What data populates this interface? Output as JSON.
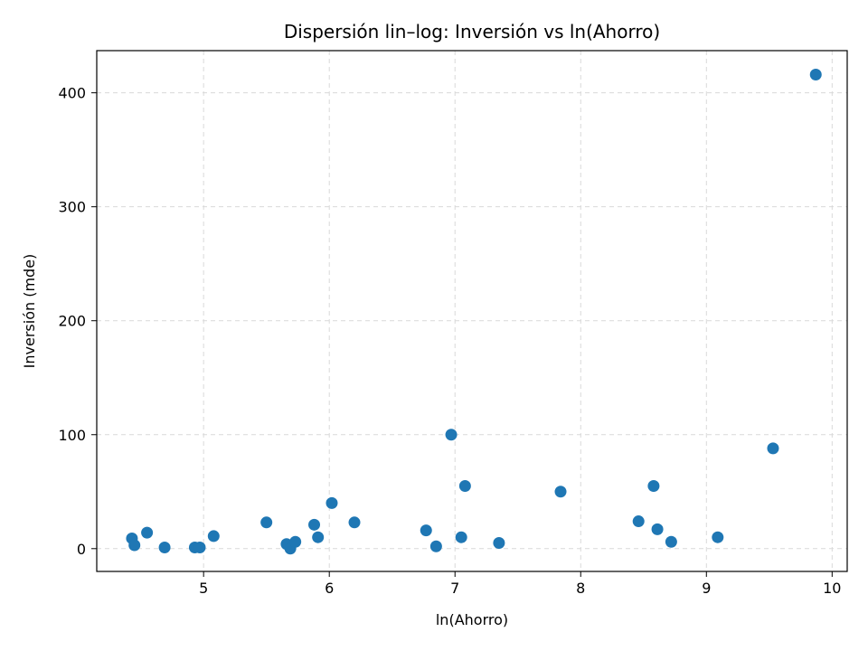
{
  "chart_data": {
    "type": "scatter",
    "title": "Dispersión lin–log: Inversión vs ln(Ahorro)",
    "xlabel": "ln(Ahorro)",
    "ylabel": "Inversión (mde)",
    "xlim": [
      4.15,
      10.12
    ],
    "ylim": [
      -20,
      437
    ],
    "xticks": [
      5,
      6,
      7,
      8,
      9,
      10
    ],
    "yticks": [
      0,
      100,
      200,
      300,
      400
    ],
    "grid": true,
    "marker_color": "#1f77b4",
    "points": [
      {
        "x": 4.43,
        "y": 9
      },
      {
        "x": 4.45,
        "y": 3
      },
      {
        "x": 4.55,
        "y": 14
      },
      {
        "x": 4.69,
        "y": 1
      },
      {
        "x": 4.93,
        "y": 1
      },
      {
        "x": 4.97,
        "y": 1
      },
      {
        "x": 5.08,
        "y": 11
      },
      {
        "x": 5.5,
        "y": 23
      },
      {
        "x": 5.66,
        "y": 4
      },
      {
        "x": 5.69,
        "y": 0
      },
      {
        "x": 5.73,
        "y": 6
      },
      {
        "x": 5.88,
        "y": 21
      },
      {
        "x": 5.91,
        "y": 10
      },
      {
        "x": 6.02,
        "y": 40
      },
      {
        "x": 6.2,
        "y": 23
      },
      {
        "x": 6.77,
        "y": 16
      },
      {
        "x": 6.85,
        "y": 2
      },
      {
        "x": 6.97,
        "y": 100
      },
      {
        "x": 7.05,
        "y": 10
      },
      {
        "x": 7.08,
        "y": 55
      },
      {
        "x": 7.35,
        "y": 5
      },
      {
        "x": 7.84,
        "y": 50
      },
      {
        "x": 8.46,
        "y": 24
      },
      {
        "x": 8.58,
        "y": 55
      },
      {
        "x": 8.61,
        "y": 17
      },
      {
        "x": 8.72,
        "y": 6
      },
      {
        "x": 9.09,
        "y": 10
      },
      {
        "x": 9.53,
        "y": 88
      },
      {
        "x": 9.87,
        "y": 416
      }
    ]
  }
}
